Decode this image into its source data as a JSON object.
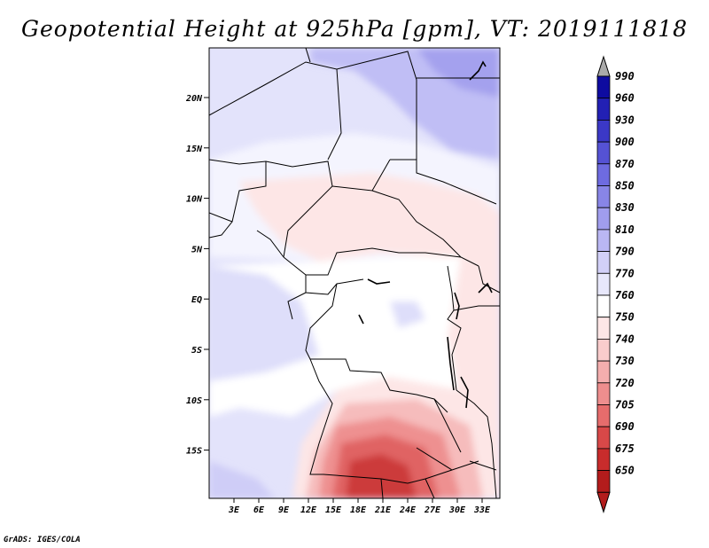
{
  "title": "Geopotential Height at 925hPa [gpm], VT: 2019111818",
  "credit": "GrADS: IGES/COLA",
  "map": {
    "lat_labels": [
      "20N",
      "15N",
      "10N",
      "5N",
      "EQ",
      "5S",
      "10S",
      "15S"
    ],
    "lon_labels": [
      "3E",
      "6E",
      "9E",
      "12E",
      "15E",
      "18E",
      "21E",
      "24E",
      "27E",
      "30E",
      "33E"
    ]
  },
  "colorbar": {
    "levels": [
      "990",
      "960",
      "930",
      "900",
      "870",
      "850",
      "830",
      "810",
      "790",
      "770",
      "760",
      "750",
      "740",
      "730",
      "720",
      "705",
      "690",
      "675",
      "650"
    ],
    "colors": [
      "#0e0ba0",
      "#2220b4",
      "#3b38c6",
      "#5552d4",
      "#6e6be0",
      "#8885e6",
      "#a09ded",
      "#bab7f3",
      "#d2d0f8",
      "#e8e8fb",
      "#ffffff",
      "#fde6e6",
      "#f9cccc",
      "#f4aeae",
      "#ee8e8e",
      "#e66c6c",
      "#d84848",
      "#c82c2c",
      "#b31c1c"
    ],
    "over_color": "#aaaaaa",
    "under_color": "#b31c1c"
  }
}
